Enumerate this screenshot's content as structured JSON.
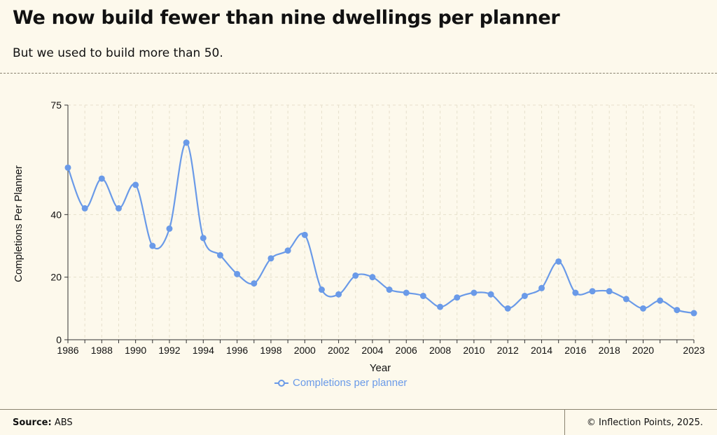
{
  "header": {
    "title": "We now build fewer than nine dwellings per planner",
    "subtitle": "But we used to build more than 50."
  },
  "footer": {
    "source_label": "Source:",
    "source_value": "ABS",
    "copyright": "© Inflection Points, 2025."
  },
  "colors": {
    "background": "#fdf9ec",
    "series": "#6a9ae8",
    "grid": "#e6e0cc",
    "rule": "#8a8370"
  },
  "chart_data": {
    "type": "line",
    "title": "We now build fewer than nine dwellings per planner",
    "subtitle": "But we used to build more than 50.",
    "xlabel": "Year",
    "ylabel": "Completions Per Planner",
    "xlim": [
      1986,
      2023
    ],
    "ylim": [
      0,
      75
    ],
    "x_ticks": [
      1986,
      1988,
      1990,
      1992,
      1994,
      1996,
      1998,
      2000,
      2002,
      2004,
      2006,
      2008,
      2010,
      2012,
      2014,
      2016,
      2018,
      2020,
      2023
    ],
    "y_ticks": [
      0,
      20,
      40,
      75
    ],
    "grid": true,
    "legend_position": "bottom-center",
    "series": [
      {
        "name": "Completions per planner",
        "x": [
          1986,
          1987,
          1988,
          1989,
          1990,
          1991,
          1992,
          1993,
          1994,
          1995,
          1996,
          1997,
          1998,
          1999,
          2000,
          2001,
          2002,
          2003,
          2004,
          2005,
          2006,
          2007,
          2008,
          2009,
          2010,
          2011,
          2012,
          2013,
          2014,
          2015,
          2016,
          2017,
          2018,
          2019,
          2020,
          2021,
          2022,
          2023
        ],
        "values": [
          55.0,
          42.0,
          51.5,
          42.0,
          49.5,
          30.0,
          35.5,
          63.0,
          32.5,
          27.0,
          21.0,
          18.0,
          26.0,
          28.5,
          33.5,
          16.0,
          14.5,
          20.5,
          20.0,
          16.0,
          15.0,
          14.0,
          10.5,
          13.5,
          15.0,
          14.5,
          10.0,
          14.0,
          16.5,
          25.0,
          15.0,
          15.5,
          15.5,
          13.0,
          10.0,
          12.5,
          9.5,
          8.5
        ]
      }
    ]
  }
}
